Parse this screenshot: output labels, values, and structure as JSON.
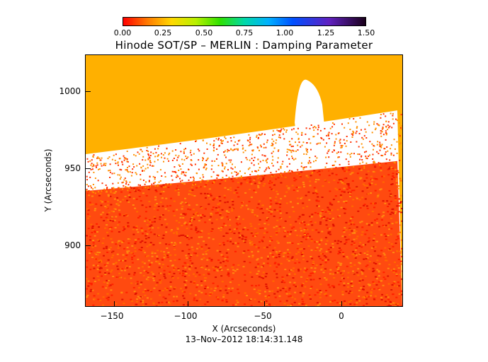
{
  "colorbar": {
    "ticks": [
      "0.00",
      "0.25",
      "0.50",
      "0.75",
      "1.00",
      "1.25",
      "1.50"
    ],
    "range": [
      0,
      1.5
    ]
  },
  "title": "Hinode SOT/SP – MERLIN : Damping Parameter",
  "axes": {
    "xlabel": "X (Arcseconds)",
    "ylabel": "Y (Arcseconds)",
    "x_ticks": [
      "−150",
      "−100",
      "−50",
      "0"
    ],
    "x_tick_values": [
      -150,
      -100,
      -50,
      0
    ],
    "y_ticks": [
      "1000",
      "950",
      "900"
    ],
    "y_tick_values": [
      1000,
      950,
      900
    ],
    "xlim": [
      -165,
      38
    ],
    "ylim": [
      860,
      1025
    ]
  },
  "timestamp": "13–Nov–2012  18:14:31.148",
  "colors": {
    "background_off_disk": "#ffb000",
    "disk": "#ff4a10",
    "limb_noise": "#ffffff"
  }
}
